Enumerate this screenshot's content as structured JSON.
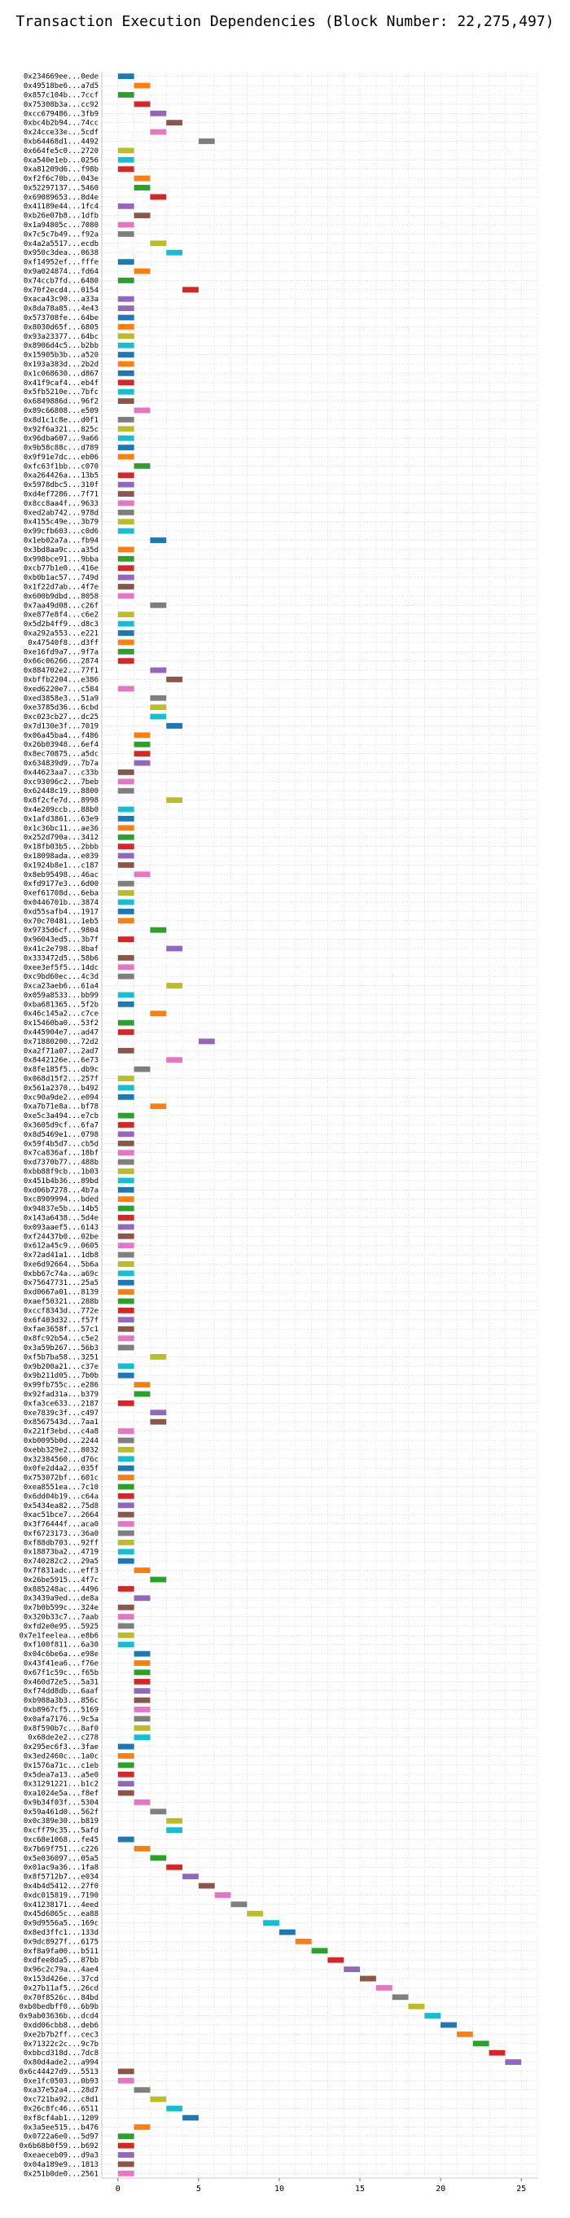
{
  "chart_data": {
    "type": "bar",
    "title": "Transaction Execution Dependencies (Block Number: 22,275,497)",
    "xlabel": "",
    "ylabel": "",
    "xlim": [
      -1,
      26
    ],
    "x_ticks": [
      0,
      5,
      10,
      15,
      20,
      25
    ],
    "grid": true,
    "legend": "none",
    "bar_duration": 1,
    "palette": [
      "#1f77b4",
      "#ff7f0e",
      "#2ca02c",
      "#d62728",
      "#9467bd",
      "#8c564b",
      "#e377c2",
      "#7f7f7f",
      "#bcbd22",
      "#17becf"
    ],
    "categories": [
      "0x234669ee...0ede",
      "0x49518be6...a7d5",
      "0x857c104b...7ccf",
      "0x75308b3a...cc92",
      "0xcc679486...3fb9",
      "0xbc4b2b94...74cc",
      "0x24cce33e...5cdf",
      "0xb64468d1...4492",
      "0x664fe5c0...2720",
      "0xa540e1eb...0256",
      "0xa81209d6...f98b",
      "0xf2f6c70b...043e",
      "0x52297137...5460",
      "0x69089653...8d4e",
      "0x41189e44...1fc4",
      "0xb26e07b8...1dfb",
      "0x1a94805c...7080",
      "0x7c5c7b49...f92a",
      "0x4a2a5517...ecdb",
      "0x950c3dea...0638",
      "0xf14952ef...fffe",
      "0x9a024874...fd64",
      "0x74ccb7fd...6480",
      "0x70f2ecd4...0154",
      "0xaca43c90...a33a",
      "0x8da78a85...4e43",
      "0x573708fe...64be",
      "0x8030d65f...6805",
      "0x93a23377...64bc",
      "0x8906d4c5...b2bb",
      "0x15905b3b...a520",
      "0x193a383d...2b2d",
      "0x1c068630...d867",
      "0x41f9caf4...eb4f",
      "0x5fb5210e...7bfc",
      "0x6849886d...96f2",
      "0x89c66808...e509",
      "0x8d1c1c8e...d0f1",
      "0x92f6a321...825c",
      "0x96dba607...9a66",
      "0x9b58c88c...d789",
      "0x9f91e7dc...eb06",
      "0xfc63f1bb...c070",
      "0xa264426a...13b5",
      "0x5978dbc5...310f",
      "0xd4ef7286...7f71",
      "0x8cc8aa4f...9633",
      "0xed2ab742...978d",
      "0x4155c49e...3b79",
      "0x99cfb603...c0d6",
      "0x1eb02a7a...fb94",
      "0x3bd8aa9c...a35d",
      "0x998bce91...9bba",
      "0xcb77b1e0...416e",
      "0xb0b1ac57...749d",
      "0x1f22d7ab...4f7e",
      "0x600b9dbd...8058",
      "0x7aa49d08...c26f",
      "0xe877e8f4...c6e2",
      "0x5d2b4ff9...d8c3",
      "0xa292a553...e221",
      "0x47540f8...d3ff",
      "0xe16fd9a7...9f7a",
      "0x66c06266...2874",
      "0x884702e2...77f1",
      "0xbffb2204...e386",
      "0xed6220e7...c584",
      "0xed3858e3...51a9",
      "0xe3785d36...6cbd",
      "0xc023cb27...dc25",
      "0x7d130e3f...7019",
      "0x06a45ba4...f486",
      "0x26b03948...6ef4",
      "0x8ec70875...a5dc",
      "0x634839d9...7b7a",
      "0x44623aa7...c33b",
      "0xc93096c2...7beb",
      "0x62448c19...8800",
      "0x8f2cfe7d...8998",
      "0x4e209ccb...88b0",
      "0x1afd3861...63e9",
      "0x1c36bc11...ae36",
      "0x252d790a...3412",
      "0x18fb03b5...2bbb",
      "0x18098ada...e039",
      "0x1924b8e1...c187",
      "0x8eb95498...46ac",
      "0xfd9177e3...6d00",
      "0xef61708d...6eba",
      "0x0446701b...3874",
      "0xd55safb4...1917",
      "0x70c70481...1eb5",
      "0x9735d6cf...9804",
      "0x96043ed5...3b7f",
      "0x41c2e798...8baf",
      "0x333472d5...58b6",
      "0xee3ef5f5...14dc",
      "0xc9bd60ec...4c3d",
      "0xca23aeb6...61a4",
      "0x059a8533...bb99",
      "0xba681365...5f2b",
      "0x46c145a2...c7ce",
      "0x15460ba0...53f2",
      "0x445904e7...ad47",
      "0x71880200...72d2",
      "0xa2f71a07...2ad7",
      "0x8442126e...6e73",
      "0x8fe185f5...db9c",
      "0x068d15f2...257f",
      "0x561a2370...b492",
      "0xc90a9de2...e094",
      "0xa7b71e8a...bf78",
      "0xe5c3a494...e7cb",
      "0x3605d9cf...6fa7",
      "0x8d5469e1...0798",
      "0x59f4b5d7...cb5d",
      "0x7ca836af...18bf",
      "0xd7370b77...488b",
      "0xbb88f9cb...1b03",
      "0x451b4b36...89bd",
      "0xd06b7278...4b7a",
      "0xc8909994...bded",
      "0x94837e5b...14b5",
      "0x143a6438...5d4e",
      "0x093aaef5...6143",
      "0xf24437b0...02be",
      "0x612a45c9...0605",
      "0x72ad41a1...1db8",
      "0xe6d92664...5b6a",
      "0xbb67c74a...a69c",
      "0x75647731...25a5",
      "0xd0667a01...8139",
      "0xaef50321...288b",
      "0xccf8343d...772e",
      "0x6f403d32...f57f",
      "0xfae3658f...57c1",
      "0x8fc92b54...c5e2",
      "0x3a59b267...56b3",
      "0xf5b7ba58...3251",
      "0x9b200a21...c37e",
      "0x9b211d05...7b0b",
      "0x99fb755c...e286",
      "0x92fad31a...b379",
      "0xfa3ce633...2187",
      "0xe7839c3f...c497",
      "0x8567543d...7aa1",
      "0x221f3ebd...c4a8",
      "0xb0095b0d...2244",
      "0xebb329e2...8032",
      "0x32384560...d76c",
      "0x0fe2d4a2...035f",
      "0x753072bf...601c",
      "0xea8551ea...7c10",
      "0x6dd04b19...c64a",
      "0x5434ea82...75d8",
      "0xac51bce7...2664",
      "0x3f76444f...aca0",
      "0xf6723173...36a0",
      "0xf88db703...92ff",
      "0x18873ba2...4719",
      "0x740282c2...29a5",
      "0x7f831adc...eff3",
      "0x26be5915...4f7c",
      "0x885248ac...4496",
      "0x3439a9ed...de8a",
      "0x7b0b599c...324e",
      "0x320b33c7...7aab",
      "0xfd2e0e95...5925",
      "0x7e1feelea...e8b6",
      "0xf100f811...6a30",
      "0x04c6be6a...e98e",
      "0x43f41ea6...f76e",
      "0x67f1c59c...f65b",
      "0x460d72e5...5a31",
      "0xf74dd8db...6aaf",
      "0xb988a3b3...856c",
      "0xb8967cf5...5169",
      "0x0afa7176...9c5a",
      "0x8f590b7c...8af0",
      "0x68de2e2...c278",
      "0x295ec6f3...3fae",
      "0x3ed2460c...1a0c",
      "0x1576a71c...c1eb",
      "0x5dea7a13...a5e0",
      "0x31291221...b1c2",
      "0xa1024e5a...f8ef",
      "0x9b34f03f...5304",
      "0x59a461d0...562f",
      "0x0c389e30...b819",
      "0xcff79c35...5afd",
      "0xc68e1068...fe45",
      "0x7b69f751...c226",
      "0x5e036097...05a5",
      "0x01ac9a36...1fa8",
      "0x8f5712b7...e034",
      "0x4b4d5412...27f0",
      "0xdc015819...7190",
      "0x41238171...4eed",
      "0x45d6865c...ea88",
      "0x9d9556a5...169c",
      "0x8ed3ffc1...133d",
      "0x9dc8927f...6175",
      "0xf8a9fa00...b511",
      "0xdfee8da5...87bb",
      "0x96c2c79a...4ae4",
      "0x153d426e...37cd",
      "0x27b11af5...26cd",
      "0x70f8526c...84bd",
      "0xb0bedbff0...6b9b",
      "0x9ab03636b...dcd4",
      "0xdd06cbb8...deb6",
      "0xe2b7b2ff...cec3",
      "0x71322c2c...9c7b",
      "0xbbcd318d...7dc8",
      "0x80d4ade2...a994",
      "0x6c44427d9...5513",
      "0xe1fc0503...0b93",
      "0xa37e52a4...28d7",
      "0xc721ba92...c8d1",
      "0x26c8fc46...6511",
      "0xf8cf4ab1...1209",
      "0x3a5ee515...b476",
      "0x0722a6e0...5d97",
      "0x6b68b0f59...b692",
      "0xeaeceb09...d9a3",
      "0x04a189e9...1813",
      "0x251b0de0...2561"
    ],
    "start_times": [
      0,
      1,
      0,
      1,
      2,
      3,
      2,
      5,
      0,
      0,
      0,
      1,
      1,
      2,
      0,
      1,
      0,
      0,
      2,
      3,
      0,
      1,
      0,
      4,
      0,
      0,
      0,
      0,
      0,
      0,
      0,
      0,
      0,
      0,
      0,
      0,
      1,
      0,
      0,
      0,
      0,
      0,
      1,
      0,
      0,
      0,
      0,
      0,
      0,
      0,
      2,
      0,
      0,
      0,
      0,
      0,
      0,
      2,
      0,
      0,
      0,
      0,
      0,
      0,
      2,
      3,
      0,
      2,
      2,
      2,
      3,
      1,
      1,
      1,
      1,
      0,
      0,
      0,
      3,
      0,
      0,
      0,
      0,
      0,
      0,
      0,
      1,
      0,
      0,
      0,
      0,
      0,
      2,
      0,
      3,
      0,
      0,
      0,
      3,
      0,
      0,
      2,
      0,
      0,
      5,
      0,
      3,
      1,
      0,
      0,
      0,
      2,
      0,
      0,
      0,
      0,
      0,
      0,
      0,
      0,
      0,
      0,
      0,
      0,
      0,
      0,
      0,
      0,
      0,
      0,
      0,
      0,
      0,
      0,
      0,
      0,
      0,
      0,
      2,
      0,
      0,
      1,
      1,
      0,
      2,
      2,
      0,
      0,
      0,
      0,
      0,
      0,
      0,
      0,
      0,
      0,
      0,
      0,
      0,
      0,
      0,
      1,
      2,
      0,
      1,
      0,
      0,
      0,
      0,
      0,
      1,
      1,
      1,
      1,
      1,
      1,
      1,
      1,
      1,
      1,
      0,
      0,
      0,
      0,
      0,
      0,
      1,
      2,
      3,
      3,
      0,
      1,
      2,
      3,
      4,
      5,
      6,
      7,
      8,
      9,
      10,
      11,
      12,
      13,
      14,
      15,
      16,
      17,
      18,
      19,
      20,
      21,
      22,
      23,
      24,
      0,
      0,
      1,
      2,
      3,
      4,
      1,
      0,
      0,
      0,
      0,
      0
    ],
    "colors": [
      0,
      1,
      2,
      3,
      4,
      5,
      6,
      7,
      8,
      9,
      3,
      1,
      2,
      3,
      4,
      5,
      6,
      7,
      8,
      9,
      0,
      1,
      2,
      3,
      4,
      4,
      0,
      1,
      8,
      9,
      0,
      1,
      0,
      3,
      9,
      5,
      6,
      7,
      8,
      9,
      0,
      1,
      2,
      3,
      4,
      5,
      6,
      7,
      8,
      9,
      0,
      1,
      2,
      3,
      4,
      5,
      6,
      7,
      8,
      9,
      0,
      1,
      2,
      3,
      4,
      5,
      6,
      7,
      8,
      9,
      0,
      1,
      2,
      3,
      4,
      5,
      6,
      7,
      8,
      9,
      0,
      1,
      2,
      3,
      4,
      5,
      6,
      7,
      8,
      9,
      0,
      1,
      2,
      3,
      4,
      5,
      6,
      7,
      8,
      9,
      0,
      1,
      2,
      3,
      4,
      5,
      6,
      7,
      8,
      9,
      0,
      1,
      2,
      3,
      4,
      5,
      6,
      7,
      8,
      9,
      0,
      1,
      2,
      3,
      4,
      5,
      6,
      7,
      8,
      9,
      0,
      1,
      2,
      3,
      4,
      5,
      6,
      7,
      8,
      9,
      0,
      1,
      2,
      3,
      4,
      5,
      6,
      7,
      8,
      9,
      0,
      1,
      2,
      3,
      4,
      5,
      6,
      7,
      8,
      9,
      0,
      1,
      2,
      3,
      4,
      5,
      6,
      7,
      8,
      9,
      0,
      1,
      2,
      3,
      4,
      5,
      6,
      7,
      8,
      9,
      0,
      1,
      2,
      3,
      4,
      5,
      6,
      7,
      8,
      9,
      0,
      1,
      2,
      3,
      4,
      5,
      6,
      7,
      8,
      9,
      0,
      1,
      2,
      3,
      4,
      5,
      6,
      7,
      8,
      9,
      0,
      1,
      2,
      3,
      4,
      5,
      6,
      7,
      8,
      9,
      0,
      1,
      2,
      3,
      4,
      5,
      6,
      7,
      8,
      9,
      0,
      1,
      2,
      3,
      4,
      5,
      6,
      7,
      8,
      9,
      0,
      1,
      2,
      3,
      4,
      5,
      6,
      7
    ]
  }
}
